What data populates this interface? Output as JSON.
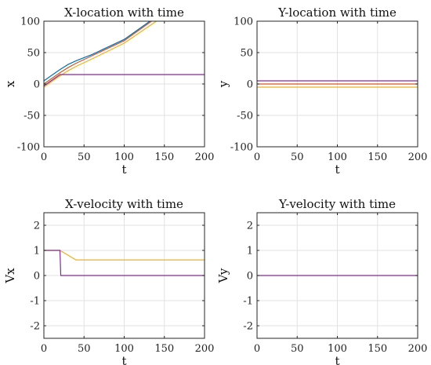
{
  "chart_data": [
    {
      "type": "line",
      "title": "X-location with time",
      "xlabel": "t",
      "ylabel": "x",
      "xlim": [
        0,
        200
      ],
      "ylim": [
        -100,
        100
      ],
      "xticks": [
        0,
        50,
        100,
        150,
        200
      ],
      "yticks": [
        -100,
        -50,
        0,
        50,
        100
      ],
      "grid": true,
      "series": [
        {
          "color": "#0072BD",
          "x": [
            0,
            10,
            20,
            30,
            40,
            60,
            100,
            132
          ],
          "y": [
            5,
            14,
            23,
            31,
            37,
            47,
            71,
            100
          ]
        },
        {
          "color": "#D95319",
          "x": [
            0,
            10,
            20,
            30,
            40,
            60,
            100,
            134
          ],
          "y": [
            0,
            9,
            18,
            26,
            33,
            45,
            69,
            100
          ]
        },
        {
          "color": "#EDB120",
          "x": [
            0,
            10,
            20,
            30,
            40,
            60,
            100,
            140
          ],
          "y": [
            -5,
            4,
            13,
            21,
            28,
            40,
            65,
            100
          ]
        },
        {
          "color": "#7E2F8E",
          "x": [
            0,
            20,
            200
          ],
          "y": [
            -3,
            15,
            15
          ]
        }
      ]
    },
    {
      "type": "line",
      "title": "Y-location with time",
      "xlabel": "t",
      "ylabel": "y",
      "xlim": [
        0,
        200
      ],
      "ylim": [
        -100,
        100
      ],
      "xticks": [
        0,
        50,
        100,
        150,
        200
      ],
      "yticks": [
        -100,
        -50,
        0,
        50,
        100
      ],
      "grid": true,
      "series": [
        {
          "color": "#7E2F8E",
          "x": [
            0,
            200
          ],
          "y": [
            5,
            5
          ]
        },
        {
          "color": "#D95319",
          "x": [
            0,
            200
          ],
          "y": [
            0,
            0
          ]
        },
        {
          "color": "#EDB120",
          "x": [
            0,
            200
          ],
          "y": [
            -5,
            -5
          ]
        }
      ]
    },
    {
      "type": "line",
      "title": "X-velocity with time",
      "xlabel": "t",
      "ylabel": "Vx",
      "xlim": [
        0,
        200
      ],
      "ylim": [
        -2.5,
        2.5
      ],
      "xticks": [
        0,
        50,
        100,
        150,
        200
      ],
      "yticks": [
        -2,
        -1,
        0,
        1,
        2
      ],
      "grid": true,
      "series": [
        {
          "color": "#EDB120",
          "x": [
            0,
            20,
            40,
            200
          ],
          "y": [
            1,
            1,
            0.62,
            0.62
          ]
        },
        {
          "color": "#7E2F8E",
          "x": [
            0,
            20,
            21,
            200
          ],
          "y": [
            1,
            1,
            0,
            0
          ]
        }
      ]
    },
    {
      "type": "line",
      "title": "Y-velocity with time",
      "xlabel": "t",
      "ylabel": "Vy",
      "xlim": [
        0,
        200
      ],
      "ylim": [
        -2.5,
        2.5
      ],
      "xticks": [
        0,
        50,
        100,
        150,
        200
      ],
      "yticks": [
        -2,
        -1,
        0,
        1,
        2
      ],
      "grid": true,
      "series": [
        {
          "color": "#7E2F8E",
          "x": [
            0,
            200
          ],
          "y": [
            0,
            0
          ]
        }
      ]
    }
  ]
}
